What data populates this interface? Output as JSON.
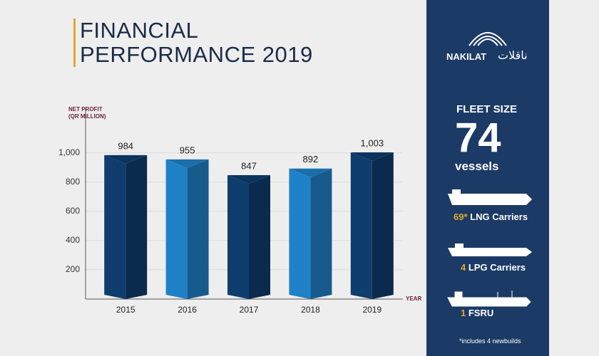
{
  "chart_data": {
    "type": "bar",
    "title": "FINANCIAL PERFORMANCE 2019",
    "y_label": "NET PROFIT (QR MILLION)",
    "x_label": "YEAR",
    "categories": [
      "2015",
      "2016",
      "2017",
      "2018",
      "2019"
    ],
    "values": [
      984,
      955,
      847,
      892,
      1003
    ],
    "value_labels": [
      "984",
      "955",
      "847",
      "892",
      "1,003"
    ],
    "colors": [
      "#0e3d6e",
      "#1f82c8",
      "#0e3d6e",
      "#1f82c8",
      "#0e3d6e"
    ],
    "ylim": [
      0,
      1300
    ],
    "yticks": [
      200,
      400,
      600,
      800,
      {
        "value": 1000,
        "label": "1,000"
      }
    ],
    "grid": true
  },
  "sidebar": {
    "logo_name": "NAKILAT",
    "logo_arabic": "ناقلات",
    "fleet_heading": "FLEET SIZE",
    "fleet_count": 74,
    "fleet_unit": "vessels",
    "items": [
      {
        "count": "69*",
        "label": "LNG Carriers"
      },
      {
        "count": 4,
        "label": "LPG Carriers"
      },
      {
        "count": 1,
        "label": "FSRU"
      }
    ],
    "footnote": "*includes 4 newbuilds"
  }
}
